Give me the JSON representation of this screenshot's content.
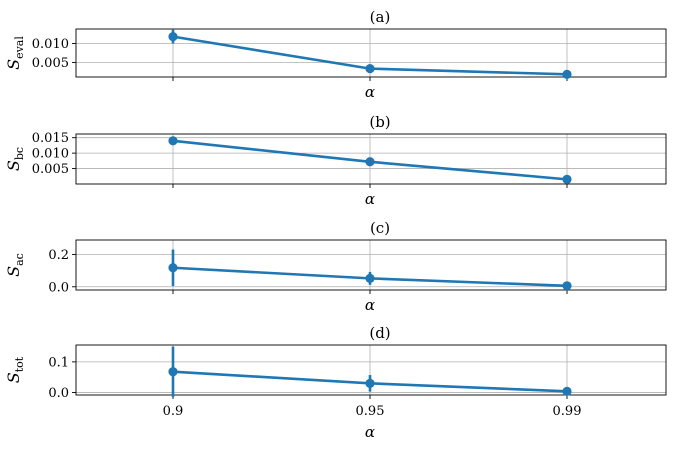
{
  "chart_data": [
    {
      "type": "line",
      "title": "(a)",
      "xlabel": "α",
      "ylabel": {
        "base": "S",
        "sub": "eval"
      },
      "categories": [
        "0.9",
        "0.95",
        "0.99"
      ],
      "x_tick_labels_shown": false,
      "values": [
        0.0118,
        0.0034,
        0.0019
      ],
      "errors": [
        0.0018,
        0.0004,
        0.0003
      ],
      "ylim": [
        0.0012,
        0.0138
      ],
      "yticks": [
        0.005,
        0.01
      ],
      "ytick_labels": [
        "0.005",
        "0.010"
      ],
      "grid": true
    },
    {
      "type": "line",
      "title": "(b)",
      "xlabel": "α",
      "ylabel": {
        "base": "S",
        "sub": "bc"
      },
      "categories": [
        "0.9",
        "0.95",
        "0.99"
      ],
      "x_tick_labels_shown": false,
      "values": [
        0.014,
        0.0072,
        0.0015
      ],
      "errors": [
        0.0004,
        0.0004,
        0.0003
      ],
      "ylim": [
        0.0,
        0.0162
      ],
      "yticks": [
        0.005,
        0.01,
        0.015
      ],
      "ytick_labels": [
        "0.005",
        "0.010",
        "0.015"
      ],
      "grid": true
    },
    {
      "type": "line",
      "title": "(c)",
      "xlabel": "α",
      "ylabel": {
        "base": "S",
        "sub": "ac"
      },
      "categories": [
        "0.9",
        "0.95",
        "0.99"
      ],
      "x_tick_labels_shown": false,
      "values": [
        0.118,
        0.052,
        0.006
      ],
      "errors": [
        0.113,
        0.04,
        0.004
      ],
      "ylim": [
        -0.02,
        0.29
      ],
      "yticks": [
        0.0,
        0.2
      ],
      "ytick_labels": [
        "0.0",
        "0.2"
      ],
      "grid": true
    },
    {
      "type": "line",
      "title": "(d)",
      "xlabel": "α",
      "ylabel": {
        "base": "S",
        "sub": "tot"
      },
      "categories": [
        "0.9",
        "0.95",
        "0.99"
      ],
      "x_tick_labels_shown": true,
      "values": [
        0.068,
        0.03,
        0.004
      ],
      "errors": [
        0.082,
        0.027,
        0.004
      ],
      "ylim": [
        -0.008,
        0.155
      ],
      "yticks": [
        0.0,
        0.1
      ],
      "ytick_labels": [
        "0.0",
        "0.1"
      ],
      "grid": true
    }
  ]
}
